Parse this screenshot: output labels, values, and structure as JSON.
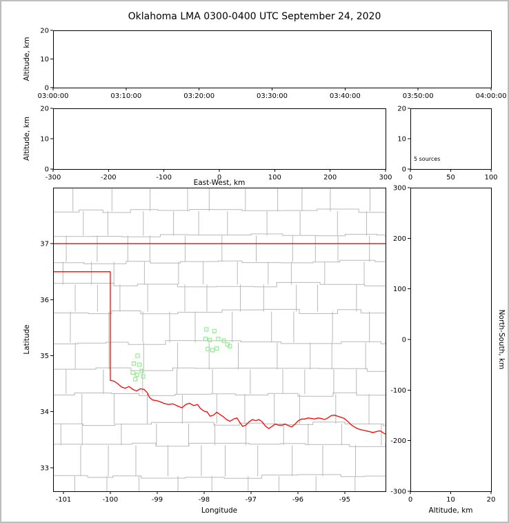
{
  "title": "Oklahoma LMA 0300-0400 UTC September 24, 2020",
  "colors": {
    "background": "#ffffff",
    "figure_border": "#bdbdbd",
    "axes_frame": "#000000",
    "state_border": "#ff0000",
    "county_lines": "#b8b8b8",
    "source_marker": "#90ee90"
  },
  "chart_data": [
    {
      "id": "time-height",
      "type": "scatter",
      "ylabel": "Altitude, km",
      "xlim": [
        0,
        6
      ],
      "ylim": [
        0,
        20
      ],
      "xtick_positions": [
        0,
        1,
        2,
        3,
        4,
        5,
        6
      ],
      "xtick_labels": [
        "03:00:00",
        "03:10:00",
        "03:20:00",
        "03:30:00",
        "03:40:00",
        "03:50:00",
        "04:00:00"
      ],
      "ytick_positions": [
        0,
        10,
        20
      ],
      "ytick_labels": [
        "0",
        "10",
        "20"
      ],
      "points": []
    },
    {
      "id": "ew-height",
      "type": "scatter",
      "xlabel": "East-West, km",
      "ylabel": "Altitude, km",
      "xlim": [
        -300,
        300
      ],
      "ylim": [
        0,
        20
      ],
      "xtick_positions": [
        -300,
        -200,
        -100,
        0,
        100,
        200,
        300
      ],
      "xtick_labels": [
        "-300",
        "-200",
        "-100",
        "0",
        "100",
        "200",
        "300"
      ],
      "ytick_positions": [
        0,
        10,
        20
      ],
      "ytick_labels": [
        "0",
        "10",
        "20"
      ],
      "points": []
    },
    {
      "id": "source-histogram",
      "type": "scatter",
      "annotation": "5 sources",
      "xlim": [
        0,
        100
      ],
      "ylim": [
        0,
        20
      ],
      "xtick_positions": [
        0,
        50,
        100
      ],
      "xtick_labels": [
        "0",
        "50",
        "100"
      ],
      "ytick_positions": [
        0,
        10,
        20
      ],
      "ytick_labels": [
        "0",
        "10",
        "20"
      ],
      "points": []
    },
    {
      "id": "plan-view",
      "type": "scatter",
      "xlabel": "Longitude",
      "ylabel": "Latitude",
      "xlim": [
        -101.22,
        -94.13
      ],
      "ylim": [
        32.58,
        38.0
      ],
      "xtick_positions": [
        -101,
        -100,
        -99,
        -98,
        -97,
        -96,
        -95
      ],
      "xtick_labels": [
        "-101",
        "-100",
        "-99",
        "-98",
        "-97",
        "-96",
        "-95"
      ],
      "ytick_positions": [
        33,
        34,
        35,
        36,
        37
      ],
      "ytick_labels": [
        "33",
        "34",
        "35",
        "36",
        "37"
      ],
      "marker": "open-square",
      "points": [
        [
          -99.42,
          35.0
        ],
        [
          -99.5,
          34.86
        ],
        [
          -99.38,
          34.84
        ],
        [
          -99.33,
          34.73
        ],
        [
          -99.52,
          34.7
        ],
        [
          -99.43,
          34.66
        ],
        [
          -99.3,
          34.63
        ],
        [
          -99.47,
          34.58
        ],
        [
          -97.95,
          35.47
        ],
        [
          -97.78,
          35.44
        ],
        [
          -97.97,
          35.3
        ],
        [
          -97.88,
          35.28
        ],
        [
          -97.7,
          35.3
        ],
        [
          -97.58,
          35.27
        ],
        [
          -97.92,
          35.12
        ],
        [
          -97.82,
          35.1
        ],
        [
          -97.73,
          35.13
        ],
        [
          -97.5,
          35.2
        ],
        [
          -97.45,
          35.17
        ]
      ],
      "state_border": [
        [
          [
            -101.22,
            37.0
          ],
          [
            -94.13,
            37.0
          ]
        ],
        [
          [
            -101.22,
            36.5
          ],
          [
            -100.0,
            36.5
          ],
          [
            -100.0,
            34.56
          ],
          [
            -99.93,
            34.55
          ],
          [
            -99.84,
            34.5
          ],
          [
            -99.76,
            34.44
          ],
          [
            -99.68,
            34.42
          ],
          [
            -99.6,
            34.45
          ],
          [
            -99.52,
            34.4
          ],
          [
            -99.44,
            34.37
          ],
          [
            -99.36,
            34.41
          ],
          [
            -99.28,
            34.4
          ],
          [
            -99.21,
            34.34
          ],
          [
            -99.17,
            34.26
          ],
          [
            -99.1,
            34.21
          ],
          [
            -99.02,
            34.2
          ],
          [
            -98.94,
            34.18
          ],
          [
            -98.86,
            34.15
          ],
          [
            -98.76,
            34.13
          ],
          [
            -98.66,
            34.14
          ],
          [
            -98.56,
            34.1
          ],
          [
            -98.47,
            34.07
          ],
          [
            -98.39,
            34.13
          ],
          [
            -98.31,
            34.15
          ],
          [
            -98.22,
            34.11
          ],
          [
            -98.14,
            34.13
          ],
          [
            -98.08,
            34.06
          ],
          [
            -98.0,
            34.01
          ],
          [
            -97.94,
            34.0
          ],
          [
            -97.87,
            33.92
          ],
          [
            -97.8,
            33.94
          ],
          [
            -97.73,
            33.99
          ],
          [
            -97.66,
            33.95
          ],
          [
            -97.59,
            33.91
          ],
          [
            -97.52,
            33.86
          ],
          [
            -97.45,
            33.83
          ],
          [
            -97.37,
            33.87
          ],
          [
            -97.3,
            33.89
          ],
          [
            -97.24,
            33.81
          ],
          [
            -97.18,
            33.74
          ],
          [
            -97.11,
            33.76
          ],
          [
            -97.04,
            33.82
          ],
          [
            -96.97,
            33.86
          ],
          [
            -96.9,
            33.84
          ],
          [
            -96.83,
            33.86
          ],
          [
            -96.76,
            33.82
          ],
          [
            -96.69,
            33.74
          ],
          [
            -96.62,
            33.7
          ],
          [
            -96.55,
            33.74
          ],
          [
            -96.48,
            33.78
          ],
          [
            -96.41,
            33.76
          ],
          [
            -96.34,
            33.76
          ],
          [
            -96.27,
            33.78
          ],
          [
            -96.2,
            33.75
          ],
          [
            -96.13,
            33.73
          ],
          [
            -96.06,
            33.78
          ],
          [
            -95.99,
            33.84
          ],
          [
            -95.92,
            33.87
          ],
          [
            -95.85,
            33.87
          ],
          [
            -95.78,
            33.89
          ],
          [
            -95.71,
            33.88
          ],
          [
            -95.64,
            33.87
          ],
          [
            -95.57,
            33.89
          ],
          [
            -95.5,
            33.88
          ],
          [
            -95.43,
            33.86
          ],
          [
            -95.36,
            33.89
          ],
          [
            -95.29,
            33.93
          ],
          [
            -95.22,
            33.94
          ],
          [
            -95.15,
            33.92
          ],
          [
            -95.08,
            33.9
          ],
          [
            -95.01,
            33.88
          ],
          [
            -94.94,
            33.83
          ],
          [
            -94.87,
            33.77
          ],
          [
            -94.8,
            33.73
          ],
          [
            -94.73,
            33.7
          ],
          [
            -94.66,
            33.68
          ],
          [
            -94.55,
            33.66
          ],
          [
            -94.4,
            33.63
          ],
          [
            -94.25,
            33.66
          ],
          [
            -94.13,
            33.6
          ]
        ]
      ]
    },
    {
      "id": "ns-height",
      "type": "scatter",
      "xlabel": "Altitude, km",
      "ylabel_right": "North-South, km",
      "xlim": [
        0,
        20
      ],
      "ylim": [
        -300,
        300
      ],
      "xtick_positions": [
        0,
        10,
        20
      ],
      "xtick_labels": [
        "0",
        "10",
        "20"
      ],
      "ytick_positions": [
        -300,
        -200,
        -100,
        0,
        100,
        200,
        300
      ],
      "ytick_labels": [
        "-300",
        "-200",
        "-100",
        "0",
        "100",
        "200",
        "300"
      ],
      "points": []
    }
  ]
}
